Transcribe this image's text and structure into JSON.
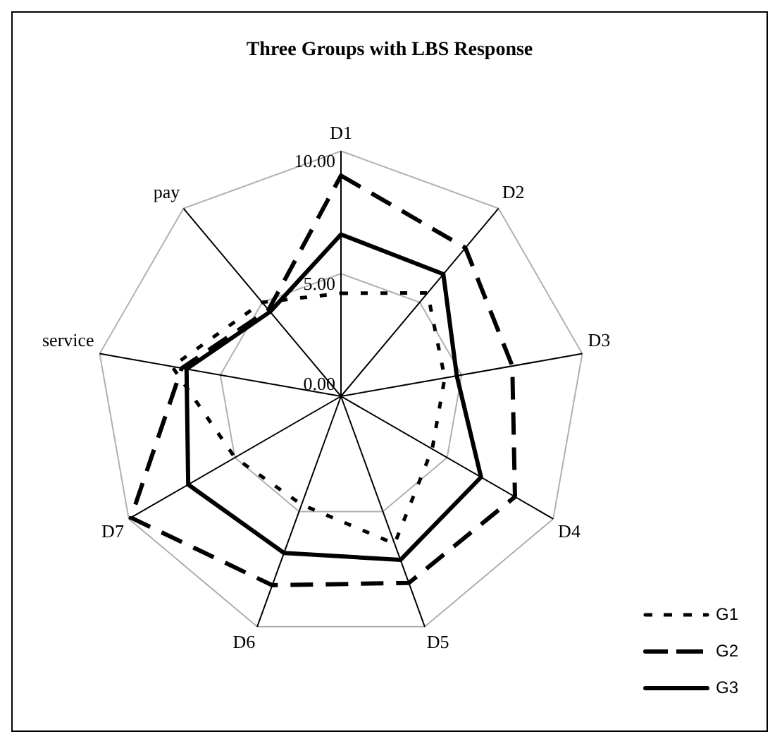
{
  "chart_data": {
    "type": "radar",
    "title": "Three Groups with LBS Response",
    "categories": [
      "D1",
      "D2",
      "D3",
      "D4",
      "D5",
      "D6",
      "D7",
      "service",
      "pay"
    ],
    "series": [
      {
        "name": "G1",
        "color": "#000000",
        "line_style": "dotted",
        "values": [
          4.2,
          5.5,
          4.3,
          4.3,
          6.4,
          4.7,
          5.0,
          7.0,
          5.0
        ]
      },
      {
        "name": "G2",
        "color": "#000000",
        "line_style": "dashed",
        "values": [
          9.0,
          7.9,
          7.1,
          8.2,
          8.1,
          8.2,
          9.9,
          6.6,
          4.6
        ]
      },
      {
        "name": "G3",
        "color": "#000000",
        "line_style": "solid",
        "values": [
          6.6,
          6.5,
          4.8,
          6.6,
          7.1,
          6.8,
          7.2,
          6.4,
          4.5
        ]
      }
    ],
    "ylim": [
      0,
      10
    ],
    "yticks": [
      {
        "value": 0,
        "label": "0.00"
      },
      {
        "value": 5,
        "label": "5.00"
      },
      {
        "value": 10,
        "label": "10.00"
      }
    ],
    "grid": true,
    "legend": "bottom right",
    "marker": "none"
  }
}
